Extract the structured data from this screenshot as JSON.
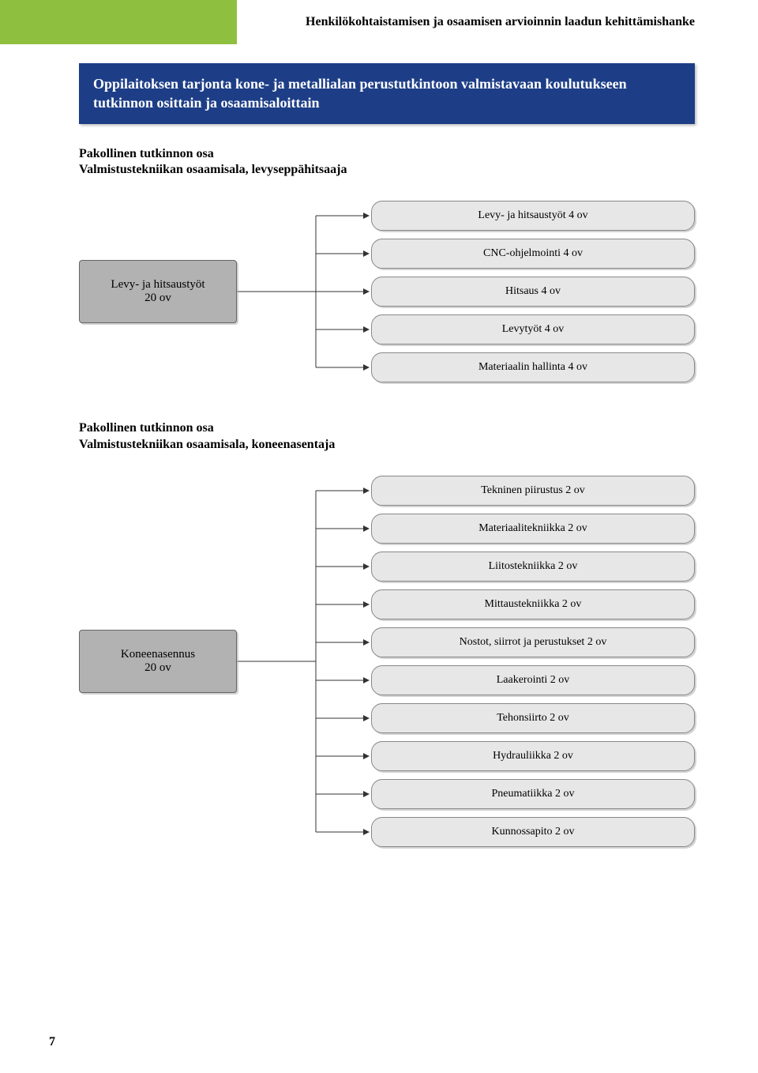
{
  "header": {
    "title": "Henkilökohtaistamisen ja osaamisen arvioinnin laadun kehittämishanke"
  },
  "banner": {
    "text": "Oppilaitoksen tarjonta kone- ja metallialan perustutkintoon valmistavaan koulutukseen tutkinnon osittain ja osaamisaloittain"
  },
  "section1": {
    "heading_line1": "Pakollinen tutkinnon osa",
    "heading_line2": "Valmistustekniikan osaamisala, levyseppähitsaaja",
    "source": {
      "line1": "Levy- ja hitsaustyöt",
      "line2": "20 ov"
    },
    "items": [
      "Levy- ja hitsaustyöt 4 ov",
      "CNC-ohjelmointi 4 ov",
      "Hitsaus 4 ov",
      "Levytyöt 4 ov",
      "Materiaalin hallinta 4 ov"
    ]
  },
  "section2": {
    "heading_line1": "Pakollinen tutkinnon osa",
    "heading_line2": "Valmistustekniikan osaamisala, koneenasentaja",
    "source": {
      "line1": "Koneenasennus",
      "line2": "20 ov"
    },
    "items": [
      "Tekninen piirustus 2 ov",
      "Materiaalitekniikka 2 ov",
      "Liitostekniikka 2 ov",
      "Mittaustekniikka 2 ov",
      "Nostot, siirrot ja perustukset 2 ov",
      "Laakerointi 2 ov",
      "Tehonsiirto 2 ov",
      "Hydrauliikka 2 ov",
      "Pneumatiikka 2 ov",
      "Kunnossapito 2 ov"
    ]
  },
  "page_number": "7",
  "colors": {
    "green": "#8fbf3f",
    "blue": "#1d3e87",
    "source_fill": "#b2b2b2",
    "pill_fill": "#e7e7e7",
    "line": "#333333"
  }
}
